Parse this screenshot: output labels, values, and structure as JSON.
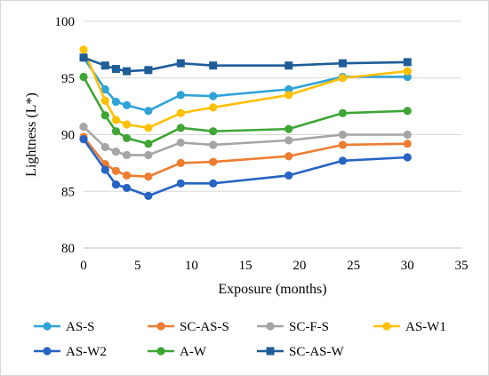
{
  "chart_data": {
    "type": "line",
    "title": "",
    "xlabel": "Exposure (months)",
    "ylabel": "Lightness (L*)",
    "xlim": [
      0,
      35
    ],
    "ylim": [
      80,
      100
    ],
    "x_ticks": [
      0,
      5,
      10,
      15,
      20,
      25,
      30,
      35
    ],
    "y_ticks": [
      80,
      85,
      90,
      95,
      100
    ],
    "grid": "horizontal",
    "legend_position": "bottom",
    "x": [
      0,
      2,
      3,
      4,
      6,
      9,
      12,
      19,
      24,
      30
    ],
    "series": [
      {
        "name": "AS-S",
        "color": "#2ea3d8",
        "marker": "circle",
        "values": [
          96.8,
          94.0,
          92.9,
          92.6,
          92.1,
          93.5,
          93.4,
          94.0,
          95.1,
          95.1
        ]
      },
      {
        "name": "SC-AS-S",
        "color": "#ed7d31",
        "marker": "circle",
        "values": [
          89.8,
          87.4,
          86.8,
          86.4,
          86.3,
          87.5,
          87.6,
          88.1,
          89.1,
          89.2
        ]
      },
      {
        "name": "SC-F-S",
        "color": "#a5a5a5",
        "marker": "circle",
        "values": [
          90.7,
          88.9,
          88.5,
          88.2,
          88.2,
          89.3,
          89.1,
          89.5,
          90.0,
          90.0
        ]
      },
      {
        "name": "AS-W1",
        "color": "#ffc000",
        "marker": "circle",
        "values": [
          97.5,
          93.0,
          91.3,
          90.9,
          90.6,
          91.9,
          92.4,
          93.5,
          95.0,
          95.6
        ]
      },
      {
        "name": "AS-W2",
        "color": "#2764c4",
        "marker": "circle",
        "values": [
          89.6,
          86.9,
          85.6,
          85.3,
          84.6,
          85.7,
          85.7,
          86.4,
          87.7,
          88.0
        ]
      },
      {
        "name": "A-W",
        "color": "#3fa535",
        "marker": "circle",
        "values": [
          95.1,
          91.7,
          90.3,
          89.7,
          89.2,
          90.6,
          90.3,
          90.5,
          91.9,
          92.1
        ]
      },
      {
        "name": "SC-AS-W",
        "color": "#1f5d99",
        "marker": "square",
        "values": [
          96.8,
          96.1,
          95.8,
          95.6,
          95.7,
          96.3,
          96.1,
          96.1,
          96.3,
          96.4
        ]
      }
    ]
  }
}
